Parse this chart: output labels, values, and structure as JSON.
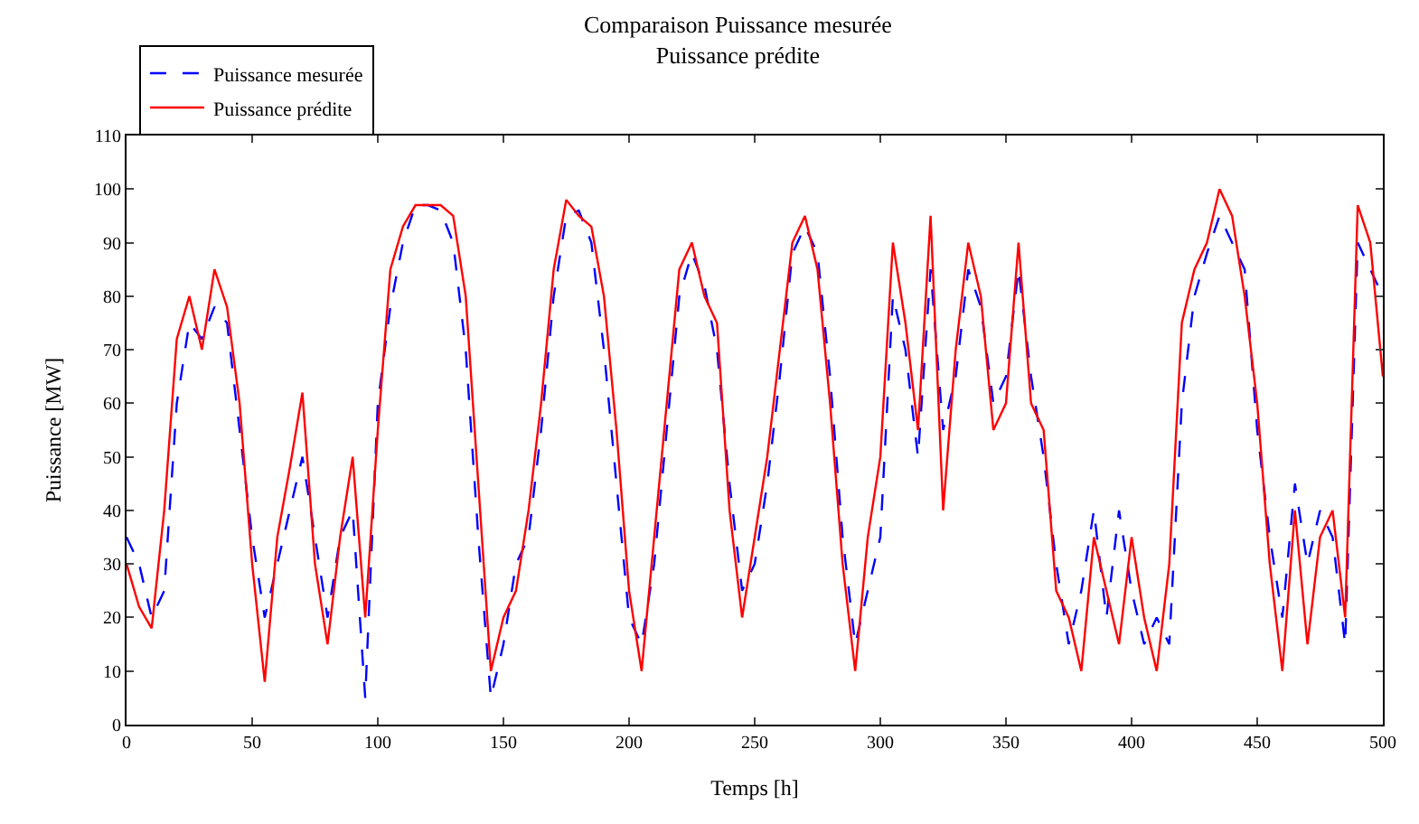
{
  "chart_data": {
    "type": "line",
    "title": "Comparaison Puissance mesurée\nPuissance prédite",
    "xlabel": "Temps [h]",
    "ylabel": "Puissance [MW]",
    "x": [
      0,
      5,
      10,
      15,
      20,
      25,
      30,
      35,
      40,
      45,
      50,
      55,
      60,
      65,
      70,
      75,
      80,
      85,
      90,
      95,
      100,
      105,
      110,
      115,
      120,
      125,
      130,
      135,
      140,
      145,
      150,
      155,
      160,
      165,
      170,
      175,
      180,
      185,
      190,
      195,
      200,
      205,
      210,
      215,
      220,
      225,
      230,
      235,
      240,
      245,
      250,
      255,
      260,
      265,
      270,
      275,
      280,
      285,
      290,
      295,
      300,
      305,
      310,
      315,
      320,
      325,
      330,
      335,
      340,
      345,
      350,
      355,
      360,
      365,
      370,
      375,
      380,
      385,
      390,
      395,
      400,
      405,
      410,
      415,
      420,
      425,
      430,
      435,
      440,
      445,
      450,
      455,
      460,
      465,
      470,
      475,
      480,
      485,
      490,
      495,
      500
    ],
    "series": [
      {
        "name": "Puissance mesurée",
        "color": "#0000ff",
        "line_style": "dashed",
        "values": [
          35,
          30,
          20,
          25,
          60,
          75,
          72,
          78,
          75,
          55,
          35,
          20,
          30,
          40,
          50,
          35,
          20,
          35,
          40,
          5,
          60,
          78,
          90,
          97,
          97,
          96,
          90,
          70,
          35,
          5,
          15,
          30,
          35,
          55,
          80,
          95,
          96,
          90,
          70,
          45,
          20,
          15,
          30,
          55,
          80,
          88,
          82,
          70,
          45,
          25,
          30,
          45,
          65,
          88,
          93,
          88,
          65,
          35,
          15,
          25,
          35,
          80,
          70,
          50,
          85,
          55,
          65,
          85,
          78,
          60,
          65,
          85,
          65,
          50,
          30,
          15,
          25,
          40,
          20,
          40,
          25,
          15,
          20,
          15,
          60,
          80,
          88,
          95,
          90,
          85,
          55,
          35,
          20,
          45,
          30,
          40,
          35,
          15,
          90,
          85,
          80
        ]
      },
      {
        "name": "Puissance prédite",
        "color": "#ff0000",
        "line_style": "solid",
        "values": [
          30,
          22,
          18,
          40,
          72,
          80,
          70,
          85,
          78,
          60,
          30,
          8,
          35,
          48,
          62,
          30,
          15,
          35,
          50,
          20,
          55,
          85,
          93,
          97,
          97,
          97,
          95,
          80,
          45,
          10,
          20,
          25,
          40,
          60,
          85,
          98,
          95,
          93,
          80,
          55,
          25,
          10,
          35,
          60,
          85,
          90,
          80,
          75,
          40,
          20,
          35,
          50,
          70,
          90,
          95,
          85,
          60,
          30,
          10,
          35,
          50,
          90,
          75,
          55,
          95,
          40,
          70,
          90,
          80,
          55,
          60,
          90,
          60,
          55,
          25,
          20,
          10,
          35,
          25,
          15,
          35,
          20,
          10,
          30,
          75,
          85,
          90,
          100,
          95,
          80,
          60,
          30,
          10,
          40,
          15,
          35,
          40,
          20,
          97,
          90,
          65
        ]
      }
    ],
    "xlim": [
      0,
      500
    ],
    "xticks": [
      0,
      50,
      100,
      150,
      200,
      250,
      300,
      350,
      400,
      450,
      500
    ],
    "ylim": [
      0,
      110
    ],
    "yticks": [
      0,
      10,
      20,
      30,
      40,
      50,
      60,
      70,
      80,
      90,
      100,
      110
    ],
    "legend": "top left"
  }
}
